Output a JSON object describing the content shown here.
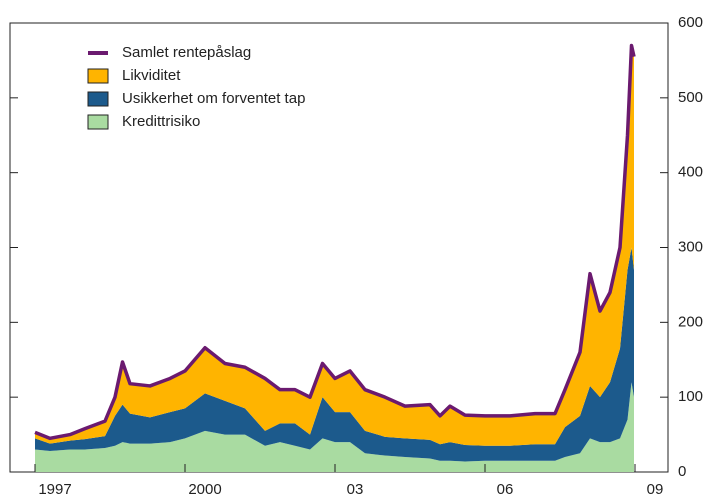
{
  "chart_data": {
    "type": "stacked_area",
    "x": [
      1997.0,
      1997.3,
      1997.7,
      1998.0,
      1998.4,
      1998.6,
      1998.75,
      1998.9,
      1999.3,
      1999.7,
      2000.0,
      2000.4,
      2000.8,
      2001.2,
      2001.6,
      2001.9,
      2002.2,
      2002.5,
      2002.75,
      2003.0,
      2003.3,
      2003.6,
      2004.0,
      2004.4,
      2004.9,
      2005.1,
      2005.3,
      2005.6,
      2006.0,
      2006.5,
      2007.0,
      2007.4,
      2007.6,
      2007.9,
      2008.1,
      2008.3,
      2008.5,
      2008.7,
      2008.85,
      2008.93,
      2008.98
    ],
    "series": [
      {
        "name": "Samlet rentepåslag",
        "type": "line",
        "color": "#6b1a6f",
        "values": [
          53,
          45,
          50,
          58,
          68,
          100,
          147,
          118,
          115,
          125,
          135,
          166,
          145,
          140,
          125,
          110,
          110,
          100,
          145,
          125,
          135,
          110,
          100,
          88,
          90,
          75,
          88,
          76,
          75,
          75,
          78,
          78,
          110,
          160,
          265,
          215,
          240,
          300,
          450,
          570,
          555
        ]
      },
      {
        "name": "Likviditet",
        "type": "area",
        "color": "#ffb400",
        "values": [
          8,
          7,
          8,
          14,
          20,
          25,
          57,
          40,
          42,
          45,
          50,
          61,
          50,
          55,
          70,
          45,
          45,
          50,
          45,
          45,
          55,
          55,
          53,
          43,
          47,
          38,
          48,
          40,
          40,
          40,
          41,
          41,
          50,
          85,
          150,
          115,
          120,
          135,
          180,
          270,
          285
        ]
      },
      {
        "name": "Usikkerhet om forventet tap",
        "type": "area",
        "color": "#1c5a8c",
        "values": [
          15,
          10,
          12,
          14,
          16,
          40,
          50,
          40,
          35,
          40,
          40,
          50,
          45,
          35,
          20,
          25,
          30,
          20,
          55,
          40,
          40,
          30,
          25,
          25,
          25,
          22,
          25,
          22,
          20,
          20,
          22,
          22,
          40,
          50,
          70,
          60,
          80,
          120,
          200,
          180,
          170
        ]
      },
      {
        "name": "Kredittrisiko",
        "type": "area",
        "color": "#a9dba1",
        "values": [
          30,
          28,
          30,
          30,
          32,
          35,
          40,
          38,
          38,
          40,
          45,
          55,
          50,
          50,
          35,
          40,
          35,
          30,
          45,
          40,
          40,
          25,
          22,
          20,
          18,
          15,
          15,
          14,
          15,
          15,
          15,
          15,
          20,
          25,
          45,
          40,
          40,
          45,
          70,
          120,
          100
        ]
      }
    ],
    "xlim": [
      1996.5,
      2009.66
    ],
    "xticks": [
      {
        "value": 1997,
        "label": "1997"
      },
      {
        "value": 2000,
        "label": "2000"
      },
      {
        "value": 2003,
        "label": "03"
      },
      {
        "value": 2006,
        "label": "06"
      },
      {
        "value": 2009,
        "label": "09"
      }
    ],
    "ylim": [
      0,
      600
    ],
    "yticks": [
      0,
      100,
      200,
      300,
      400,
      500,
      600
    ],
    "legend": "upper left"
  }
}
